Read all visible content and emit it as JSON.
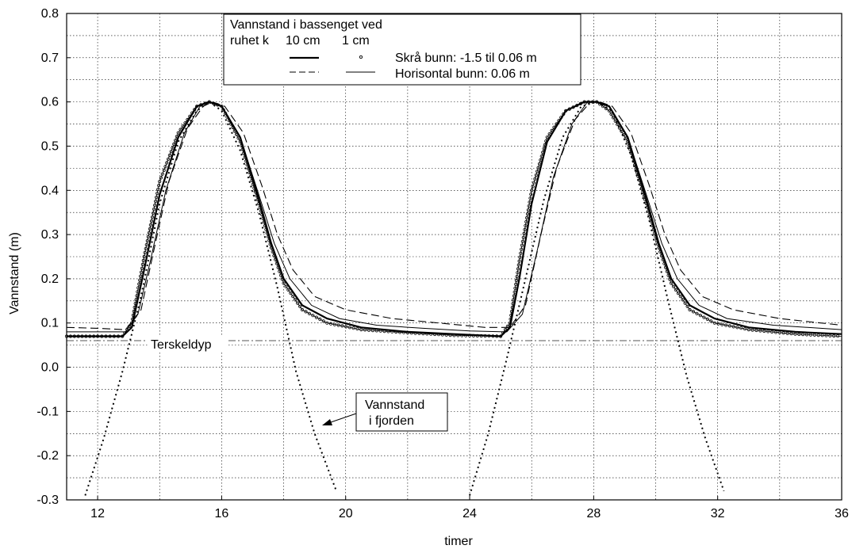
{
  "chart_data": {
    "type": "line",
    "xlabel": "timer",
    "ylabel": "Vannstand (m)",
    "xlim": [
      11,
      36
    ],
    "ylim": [
      -0.3,
      0.8
    ],
    "xticks": [
      12,
      16,
      20,
      24,
      28,
      32,
      36
    ],
    "yticks": [
      -0.3,
      -0.2,
      -0.1,
      0.0,
      0.1,
      0.2,
      0.3,
      0.4,
      0.5,
      0.6,
      0.7,
      0.8
    ],
    "ytick_labels": [
      "-0.3",
      "-0.2",
      "-0.1",
      "0.0",
      "0.1",
      "0.2",
      "0.3",
      "0.4",
      "0.5",
      "0.6",
      "0.7",
      "0.8"
    ],
    "grid": true,
    "legend": {
      "placement": "top-center",
      "title_line1": "Vannstand i bassenget ved",
      "title_line2_prefix": "ruhet k",
      "col1": "10 cm",
      "col2": "1 cm",
      "row1": "Skrå bunn: -1.5 til 0.06 m",
      "row2": "Horisontal  bunn: 0.06 m"
    },
    "threshold": {
      "label": "Terskeldyp",
      "value": 0.06
    },
    "annotation": {
      "line1": "Vannstand",
      "line2": "i fjorden",
      "target_x": 19.0,
      "target_y": -0.13
    },
    "series": [
      {
        "name": "Vannstand i fjorden",
        "style": "dotted",
        "x": [
          11.6,
          12.2,
          12.8,
          13.4,
          14.0,
          14.6,
          15.2,
          15.6,
          16.0,
          16.6,
          17.2,
          17.8,
          18.4,
          19.0,
          19.7,
          24.0,
          24.6,
          25.2,
          25.8,
          26.4,
          27.0,
          27.6,
          28.1,
          28.6,
          29.2,
          29.8,
          30.4,
          31.0,
          31.6,
          32.2
        ],
        "y": [
          -0.29,
          -0.16,
          -0.01,
          0.16,
          0.37,
          0.51,
          0.58,
          0.6,
          0.58,
          0.49,
          0.35,
          0.18,
          -0.01,
          -0.15,
          -0.28,
          -0.29,
          -0.15,
          0.02,
          0.2,
          0.38,
          0.52,
          0.59,
          0.6,
          0.58,
          0.48,
          0.33,
          0.15,
          -0.02,
          -0.16,
          -0.28
        ]
      },
      {
        "name": "Skrå bunn, 10 cm",
        "style": "solid-thick",
        "x": [
          11.0,
          12.0,
          12.8,
          13.1,
          13.5,
          14.0,
          14.6,
          15.2,
          15.6,
          16.0,
          16.6,
          17.2,
          17.6,
          18.0,
          18.6,
          19.4,
          20.5,
          22.0,
          23.5,
          25.0,
          25.3,
          25.6,
          26.0,
          26.5,
          27.1,
          27.7,
          28.1,
          28.5,
          29.1,
          29.7,
          30.1,
          30.5,
          31.1,
          31.9,
          33.0,
          34.5,
          36.0
        ],
        "y": [
          0.07,
          0.07,
          0.07,
          0.09,
          0.22,
          0.39,
          0.52,
          0.59,
          0.6,
          0.59,
          0.52,
          0.38,
          0.28,
          0.2,
          0.14,
          0.11,
          0.09,
          0.08,
          0.075,
          0.07,
          0.09,
          0.2,
          0.37,
          0.51,
          0.58,
          0.6,
          0.6,
          0.59,
          0.52,
          0.38,
          0.28,
          0.2,
          0.14,
          0.11,
          0.09,
          0.08,
          0.075
        ]
      },
      {
        "name": "Skrå bunn, 1 cm",
        "style": "circles",
        "x": [
          11.0,
          12.0,
          12.8,
          13.1,
          13.5,
          14.0,
          14.6,
          15.2,
          15.6,
          16.0,
          16.6,
          17.2,
          17.6,
          18.0,
          18.6,
          19.4,
          20.5,
          22.0,
          23.5,
          25.0,
          25.3,
          25.6,
          26.0,
          26.5,
          27.1,
          27.7,
          28.1,
          28.5,
          29.1,
          29.7,
          30.1,
          30.5,
          31.1,
          31.9,
          33.0,
          34.5,
          36.0
        ],
        "y": [
          0.07,
          0.07,
          0.07,
          0.1,
          0.25,
          0.42,
          0.53,
          0.59,
          0.6,
          0.59,
          0.51,
          0.37,
          0.27,
          0.19,
          0.13,
          0.1,
          0.085,
          0.078,
          0.072,
          0.07,
          0.1,
          0.24,
          0.4,
          0.52,
          0.58,
          0.6,
          0.6,
          0.58,
          0.51,
          0.37,
          0.27,
          0.19,
          0.13,
          0.1,
          0.085,
          0.075,
          0.07
        ]
      },
      {
        "name": "Horisontal bunn, 10 cm",
        "style": "dashed",
        "x": [
          11.0,
          12.0,
          12.9,
          13.4,
          13.8,
          14.3,
          14.9,
          15.4,
          15.7,
          16.1,
          16.7,
          17.3,
          17.8,
          18.3,
          19.0,
          20.0,
          21.5,
          23.0,
          24.5,
          25.3,
          25.8,
          26.3,
          26.8,
          27.4,
          27.9,
          28.2,
          28.6,
          29.2,
          29.8,
          30.3,
          30.8,
          31.5,
          32.5,
          34.0,
          36.0
        ],
        "y": [
          0.09,
          0.088,
          0.085,
          0.13,
          0.26,
          0.42,
          0.54,
          0.59,
          0.6,
          0.59,
          0.53,
          0.41,
          0.3,
          0.22,
          0.16,
          0.13,
          0.11,
          0.1,
          0.09,
          0.09,
          0.14,
          0.3,
          0.45,
          0.56,
          0.6,
          0.6,
          0.59,
          0.53,
          0.41,
          0.3,
          0.22,
          0.16,
          0.13,
          0.11,
          0.095
        ]
      },
      {
        "name": "Horisontal bunn, 1 cm",
        "style": "solid-thin",
        "x": [
          11.0,
          12.0,
          12.9,
          13.3,
          13.7,
          14.2,
          14.8,
          15.3,
          15.6,
          16.0,
          16.6,
          17.2,
          17.7,
          18.2,
          18.9,
          19.8,
          21.0,
          22.5,
          24.0,
          25.2,
          25.7,
          26.2,
          26.7,
          27.3,
          27.8,
          28.1,
          28.5,
          29.1,
          29.7,
          30.2,
          30.7,
          31.4,
          32.3,
          33.8,
          36.0
        ],
        "y": [
          0.08,
          0.08,
          0.08,
          0.12,
          0.24,
          0.4,
          0.53,
          0.59,
          0.6,
          0.59,
          0.52,
          0.39,
          0.28,
          0.2,
          0.14,
          0.11,
          0.095,
          0.088,
          0.082,
          0.08,
          0.12,
          0.27,
          0.43,
          0.55,
          0.6,
          0.6,
          0.59,
          0.52,
          0.39,
          0.28,
          0.2,
          0.14,
          0.11,
          0.095,
          0.085
        ]
      }
    ]
  }
}
